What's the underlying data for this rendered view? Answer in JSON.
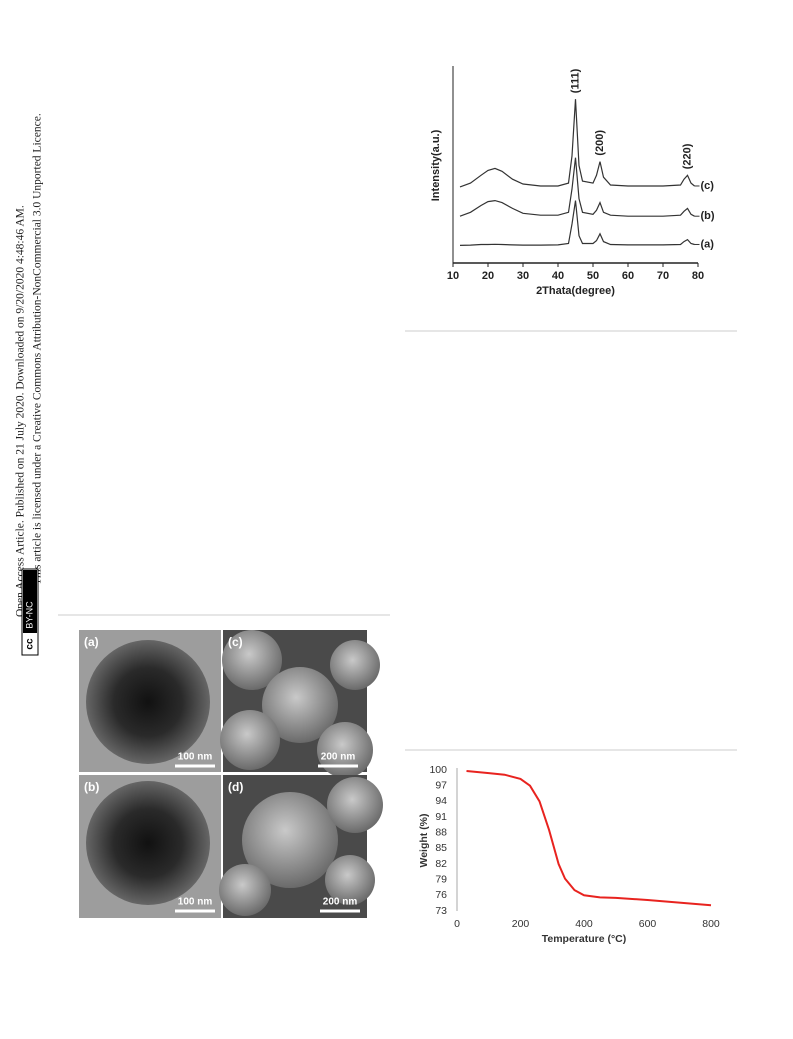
{
  "sidebar": {
    "line1": "Open Access Article. Published on 21 July 2020. Downloaded on 9/20/2020 4:48:46 AM.",
    "line2": "This article is licensed under a Creative Commons Attribution-NonCommercial 3.0 Unported Licence.",
    "badge_cc": "cc",
    "badge": "BY-NC"
  },
  "figure": {
    "panels": [
      {
        "label": "(a)",
        "scale": "100 nm"
      },
      {
        "label": "(c)",
        "scale": "200 nm"
      },
      {
        "label": "(b)",
        "scale": "100 nm"
      },
      {
        "label": "(d)",
        "scale": "200 nm"
      }
    ]
  },
  "chart_data": [
    {
      "type": "line",
      "x_label": "2Thata(degree)",
      "y_label": "Intensity(a.u.)",
      "x": [
        12,
        15,
        18,
        20,
        22,
        24,
        27,
        30,
        35,
        40,
        43,
        44,
        45,
        46,
        47,
        50,
        51,
        52,
        53,
        55,
        60,
        70,
        75,
        76,
        77,
        78,
        79
      ],
      "series": [
        {
          "name": "(a)",
          "color": "#333333",
          "values": [
            0.9,
            0.92,
            0.95,
            0.95,
            0.96,
            0.95,
            0.93,
            0.92,
            0.92,
            0.93,
            1.0,
            2.0,
            3.2,
            1.4,
            1.0,
            1.0,
            1.15,
            1.5,
            1.1,
            0.95,
            0.93,
            0.93,
            0.95,
            1.1,
            1.2,
            1.0,
            0.95
          ]
        },
        {
          "name": "(b)",
          "color": "#333333",
          "values": [
            2.4,
            2.6,
            2.95,
            3.15,
            3.2,
            3.1,
            2.8,
            2.55,
            2.45,
            2.45,
            2.6,
            3.8,
            5.4,
            3.3,
            2.6,
            2.5,
            2.7,
            3.1,
            2.6,
            2.45,
            2.4,
            2.4,
            2.45,
            2.65,
            2.8,
            2.5,
            2.4
          ]
        },
        {
          "name": "(c)",
          "color": "#333333",
          "values": [
            3.9,
            4.1,
            4.5,
            4.75,
            4.85,
            4.7,
            4.3,
            4.05,
            3.95,
            3.95,
            4.1,
            5.5,
            8.4,
            5.0,
            4.2,
            4.1,
            4.5,
            5.2,
            4.4,
            4.0,
            3.95,
            3.95,
            4.0,
            4.3,
            4.5,
            4.1,
            3.95
          ]
        }
      ],
      "annotations": [
        {
          "text": "(111)",
          "x": 45
        },
        {
          "text": "(200)",
          "x": 52
        },
        {
          "text": "(220)",
          "x": 77
        }
      ],
      "xlim": [
        10,
        80
      ],
      "ylim": [
        0,
        10
      ],
      "xticks": [
        10,
        20,
        30,
        40,
        50,
        60,
        70,
        80
      ]
    },
    {
      "type": "line",
      "x_label": "Temperature (°C)",
      "y_label": "Weight (%)",
      "x": [
        30,
        100,
        150,
        200,
        230,
        260,
        290,
        320,
        340,
        370,
        400,
        450,
        500,
        600,
        700,
        800
      ],
      "values": [
        99.8,
        99.4,
        99.1,
        98.3,
        97,
        94,
        88.5,
        82,
        79.2,
        77,
        76,
        75.6,
        75.5,
        75.1,
        74.6,
        74.1
      ],
      "color": "#e8231f",
      "xlim": [
        0,
        800
      ],
      "ylim": [
        73,
        100
      ],
      "xticks": [
        0,
        200,
        400,
        600,
        800
      ],
      "yticks": [
        73,
        76,
        79,
        82,
        85,
        88,
        91,
        94,
        97,
        100
      ]
    }
  ]
}
